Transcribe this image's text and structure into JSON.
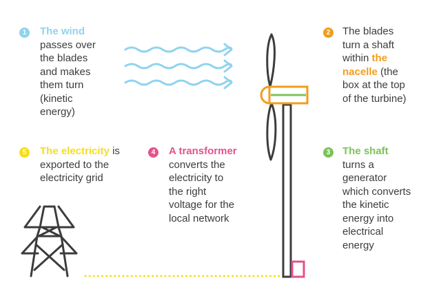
{
  "colors": {
    "wind": "#8fd3ee",
    "nacelle": "#f29d1e",
    "shaft": "#7cc25a",
    "transformer": "#e4528b",
    "electricity": "#f6de1d",
    "structure": "#3c3c3c"
  },
  "steps": [
    {
      "number": "1",
      "highlight": "The wind",
      "lines": [
        "passes over",
        "the blades",
        "and makes",
        "them turn",
        "(kinetic",
        "energy)"
      ]
    },
    {
      "number": "2",
      "lines_before": [
        "The blades",
        "turn a shaft",
        "within"
      ],
      "highlight": "the nacelle",
      "highlight_rest": "(the",
      "lines_after": [
        "box at the top",
        "of the turbine)"
      ]
    },
    {
      "number": "3",
      "highlight": "The shaft",
      "lines": [
        "turns a",
        "generator",
        "which converts",
        "the kinetic",
        "energy into",
        "electrical",
        "energy"
      ]
    },
    {
      "number": "4",
      "highlight": "A transformer",
      "lines": [
        "converts the",
        "electricity to",
        "the right",
        "voltage for the",
        "local network"
      ]
    },
    {
      "number": "5",
      "highlight": "The electricity",
      "highlight_rest": "is",
      "lines": [
        "exported to the",
        "electricity grid"
      ]
    }
  ],
  "icons": [
    "wind-lines-icon",
    "wind-turbine-icon",
    "pylon-icon",
    "dotted-cable-icon"
  ]
}
